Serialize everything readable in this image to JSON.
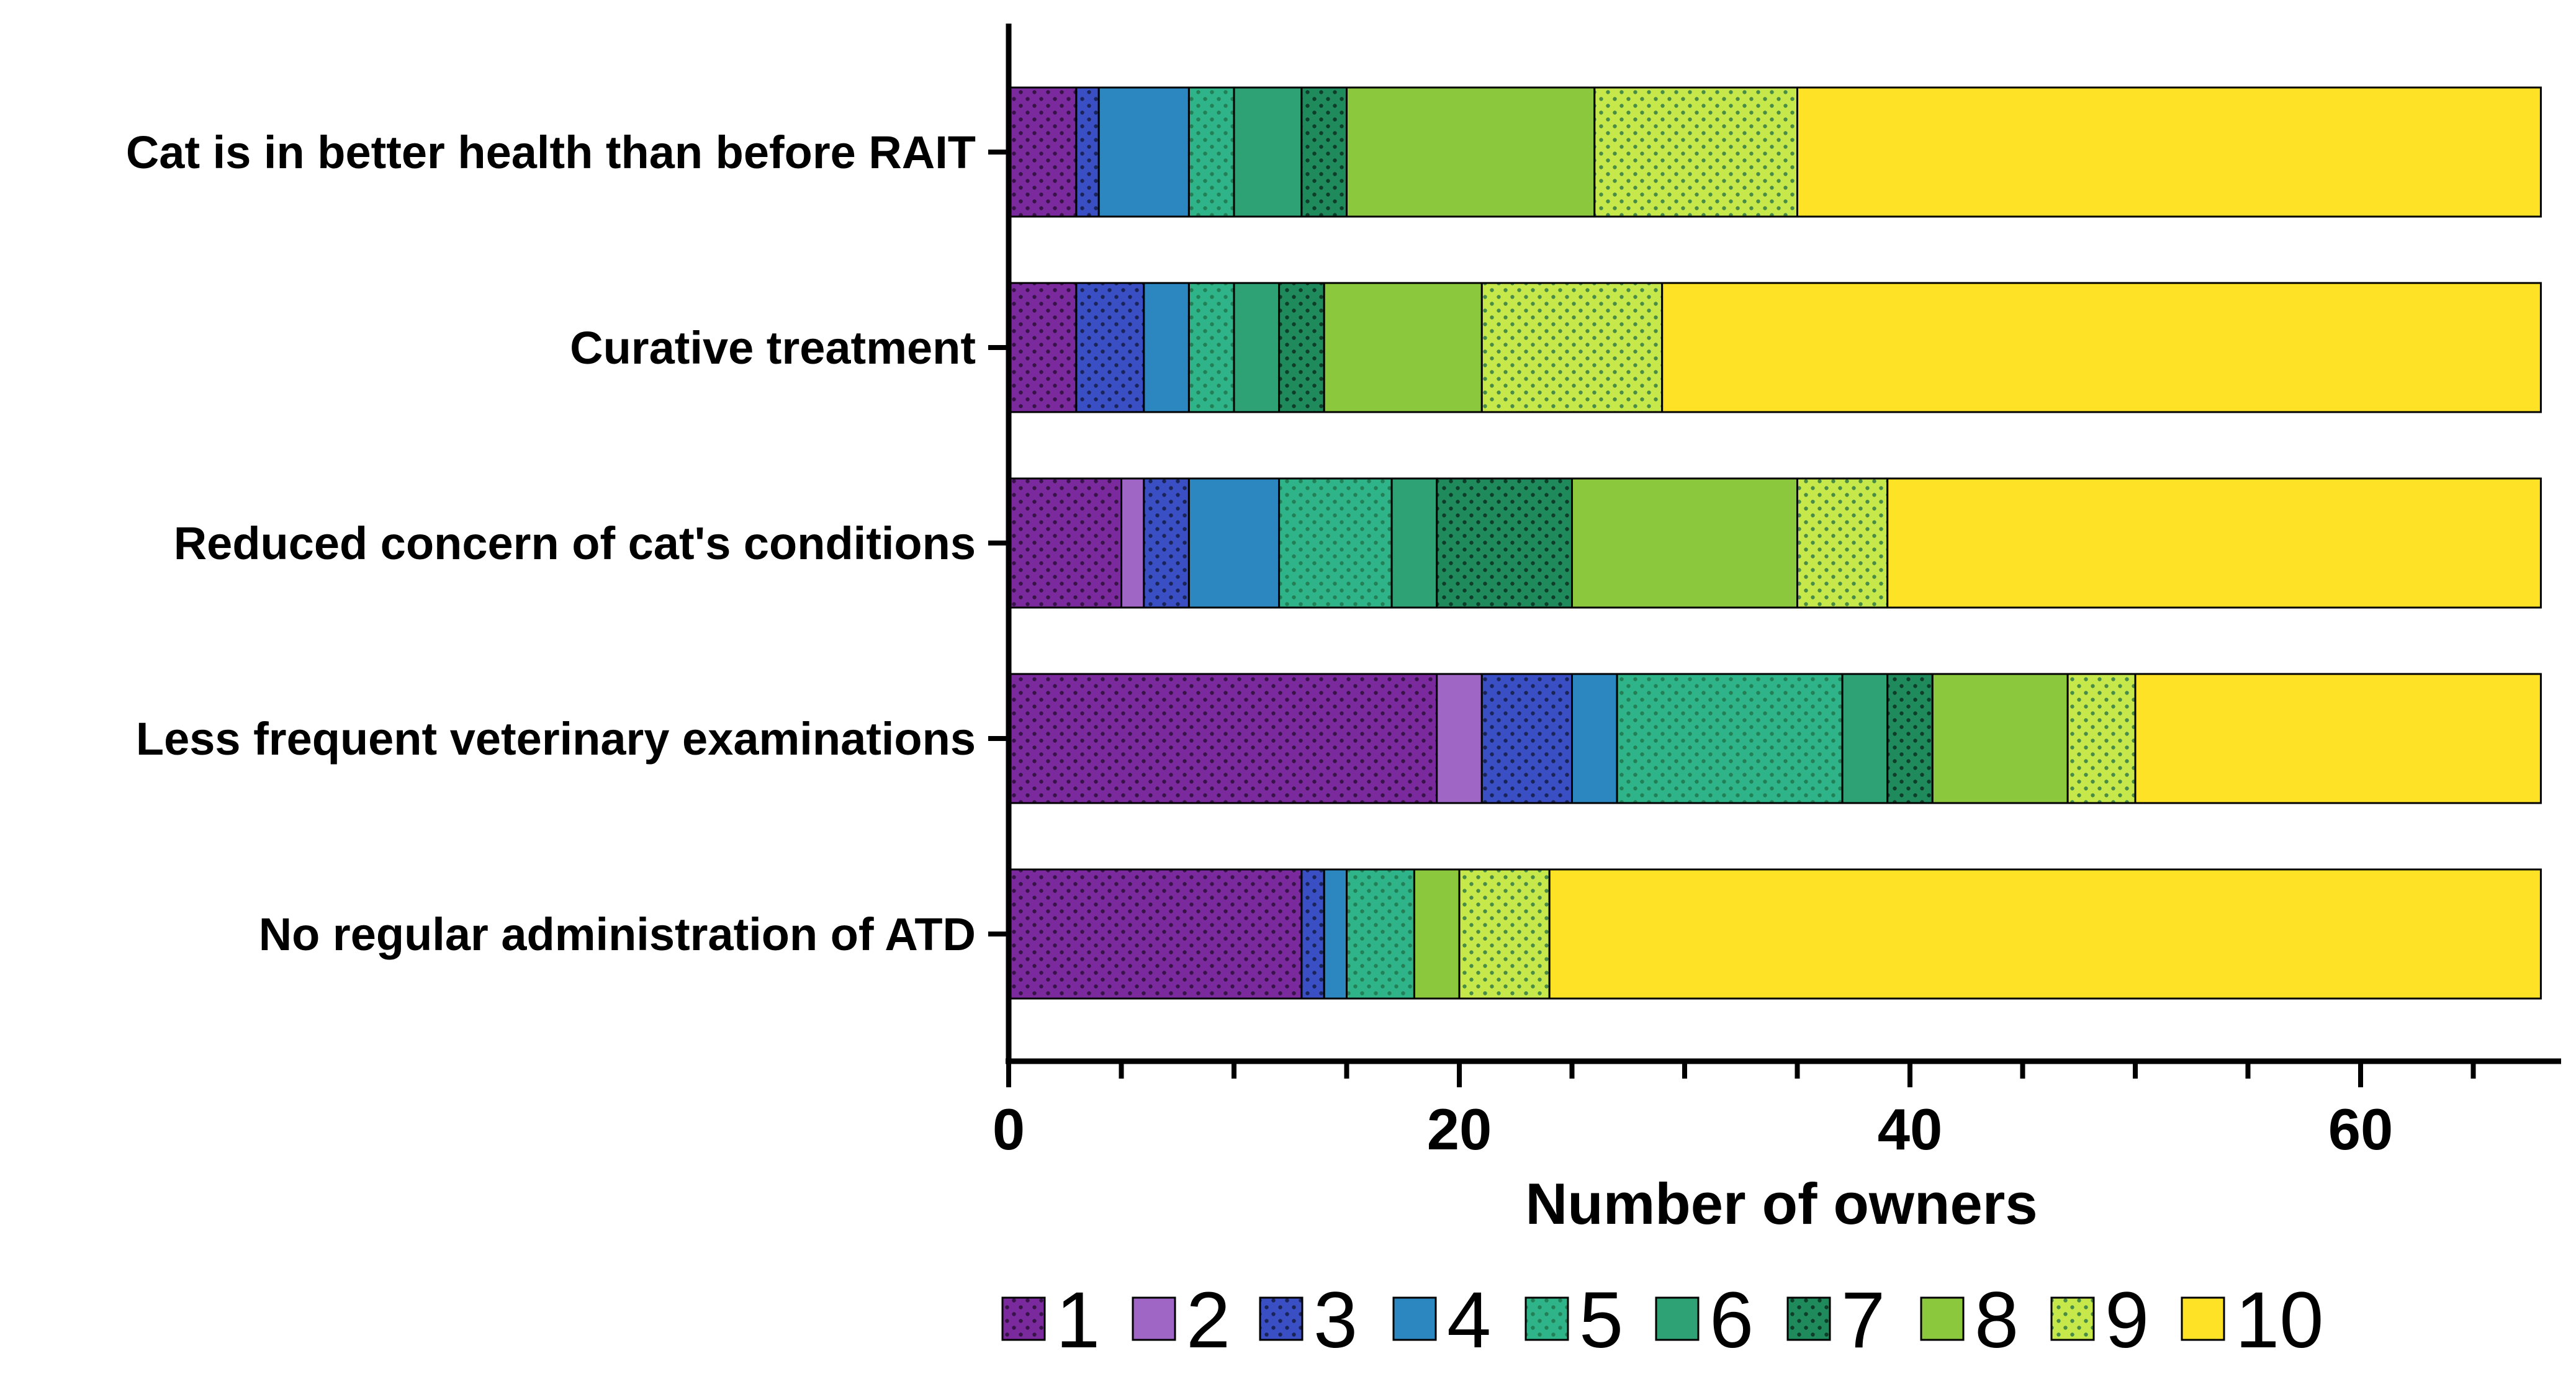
{
  "chart_data": {
    "type": "bar",
    "orientation": "horizontal",
    "stacked": true,
    "title": "",
    "xlabel": "Number of owners",
    "ylabel": "",
    "xlim": [
      0,
      70
    ],
    "x_ticks": [
      0,
      20,
      40,
      60
    ],
    "categories": [
      "Cat is in better health than before RAIT",
      "Curative treatment",
      "Reduced concern of cat's conditions",
      "Less frequent veterinary examinations",
      "No regular administration of ATD"
    ],
    "series": [
      {
        "name": "1",
        "color": "#7B2A9E",
        "pattern": "dots-dark",
        "values": [
          3,
          3,
          5,
          19,
          13
        ]
      },
      {
        "name": "2",
        "color": "#A066C6",
        "pattern": "solid",
        "values": [
          0,
          0,
          1,
          2,
          0
        ]
      },
      {
        "name": "3",
        "color": "#3A4FC4",
        "pattern": "dots-dark",
        "values": [
          1,
          3,
          2,
          4,
          1
        ]
      },
      {
        "name": "4",
        "color": "#2C86C0",
        "pattern": "solid",
        "values": [
          4,
          2,
          4,
          2,
          1
        ]
      },
      {
        "name": "5",
        "color": "#2FB388",
        "pattern": "dots-light",
        "values": [
          2,
          2,
          5,
          10,
          3
        ]
      },
      {
        "name": "6",
        "color": "#2EA175",
        "pattern": "solid",
        "values": [
          3,
          2,
          2,
          2,
          0
        ]
      },
      {
        "name": "7",
        "color": "#1F8A5C",
        "pattern": "dots-dark",
        "values": [
          2,
          2,
          6,
          2,
          0
        ]
      },
      {
        "name": "8",
        "color": "#8BC83E",
        "pattern": "solid",
        "values": [
          11,
          7,
          10,
          6,
          2
        ]
      },
      {
        "name": "9",
        "color": "#C6E84A",
        "pattern": "dots-light",
        "values": [
          9,
          8,
          4,
          3,
          4
        ]
      },
      {
        "name": "10",
        "color": "#FDE226",
        "pattern": "solid",
        "values": [
          33,
          39,
          29,
          18,
          44
        ]
      }
    ],
    "legend_position": "bottom"
  }
}
